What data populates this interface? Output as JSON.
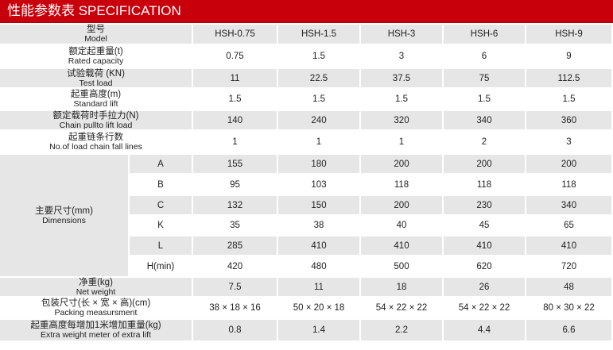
{
  "title": "性能参数表  SPECIFICATION",
  "rows": [
    {
      "zh": "型号",
      "en": "Model",
      "values": [
        "HSH-0.75",
        "HSH-1.5",
        "HSH-3",
        "HSH-6",
        "HSH-9"
      ]
    },
    {
      "zh": "额定起重量(t)",
      "en": "Rated capacity",
      "values": [
        "0.75",
        "1.5",
        "3",
        "6",
        "9"
      ]
    },
    {
      "zh": "试验载荷 (KN)",
      "en": "Test load",
      "values": [
        "11",
        "22.5",
        "37.5",
        "75",
        "112.5"
      ]
    },
    {
      "zh": "起重高度(m)",
      "en": "Standard lift",
      "values": [
        "1.5",
        "1.5",
        "1.5",
        "1.5",
        "1.5"
      ]
    },
    {
      "zh": "额定载荷时手拉力(N)",
      "en": "Chain pullto lift load",
      "values": [
        "140",
        "240",
        "320",
        "340",
        "360"
      ]
    },
    {
      "zh": "起重链条行数",
      "en": "No.of load chain fall lines",
      "values": [
        "1",
        "1",
        "1",
        "2",
        "3"
      ]
    }
  ],
  "dimensions": {
    "zh": "主要尺寸(mm)",
    "en": "Dimensions",
    "rows": [
      {
        "label": "A",
        "values": [
          "155",
          "180",
          "200",
          "200",
          "200"
        ]
      },
      {
        "label": "B",
        "values": [
          "95",
          "103",
          "118",
          "118",
          "118"
        ]
      },
      {
        "label": "C",
        "values": [
          "132",
          "150",
          "200",
          "230",
          "340"
        ]
      },
      {
        "label": "K",
        "values": [
          "35",
          "38",
          "40",
          "45",
          "65"
        ]
      },
      {
        "label": "L",
        "values": [
          "285",
          "410",
          "410",
          "410",
          "410"
        ]
      },
      {
        "label": "H(min)",
        "values": [
          "420",
          "480",
          "500",
          "620",
          "720"
        ]
      }
    ]
  },
  "rows2": [
    {
      "zh": "净重(kg)",
      "en": "Net weight",
      "values": [
        "7.5",
        "11",
        "18",
        "26",
        "48"
      ]
    },
    {
      "zh": "包装尺寸(长 × 宽 × 高)(cm)",
      "en": "Packing measursment",
      "values": [
        "38 × 18 × 16",
        "50 × 20 × 18",
        "54 × 22 × 22",
        "54 × 22 × 22",
        "80 × 30 × 22"
      ]
    },
    {
      "zh": "起重高度每增加1米增加重量(kg)",
      "en": "Extra weight meter of extra lift",
      "values": [
        "0.8",
        "1.4",
        "2.2",
        "4.4",
        "6.6"
      ]
    }
  ]
}
